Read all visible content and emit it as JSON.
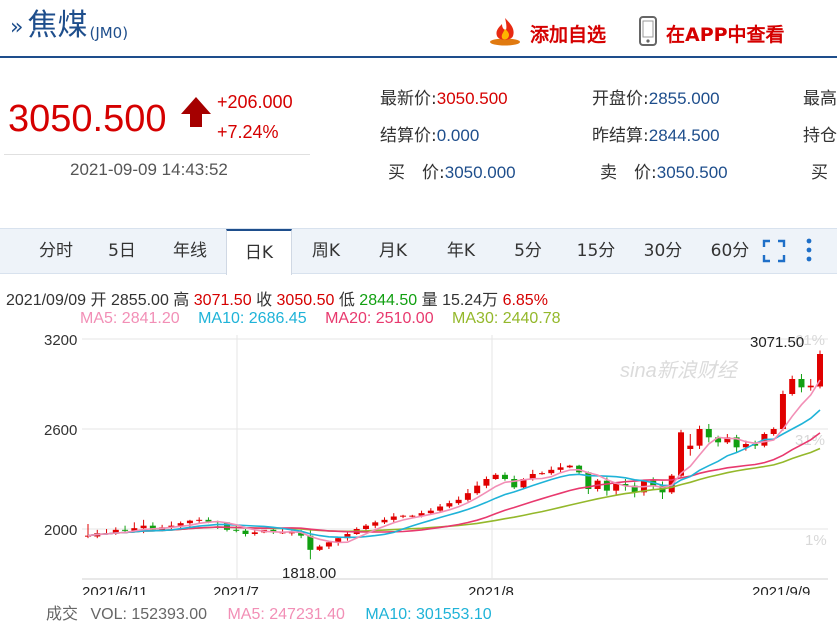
{
  "header": {
    "name": "焦煤",
    "code": "(JM0)",
    "add_watch": "添加自选",
    "view_app": "在APP中查看"
  },
  "quote": {
    "price": "3050.500",
    "change": "+206.000",
    "change_pct": "+7.24%",
    "timestamp": "2021-09-09 14:43:52",
    "fields": {
      "latest_label": "最新价:",
      "latest": "3050.500",
      "open_label": "开盘价:",
      "open": "2855.000",
      "high_label": "最高",
      "settle_label": "结算价:",
      "settle": "0.000",
      "prev_settle_label": "昨结算:",
      "prev_settle": "2844.500",
      "hold_label": "持仓",
      "buy_label": "买　价:",
      "buy": "3050.000",
      "sell_label": "卖　价:",
      "sell": "3050.500",
      "buy_vol_label": "买"
    }
  },
  "tabs": [
    "分时",
    "5日",
    "年线",
    "日K",
    "周K",
    "月K",
    "年K",
    "5分",
    "15分",
    "30分",
    "60分"
  ],
  "active_tab": "日K",
  "bar_info": {
    "date": "2021/09/09",
    "open_label": "开",
    "open": "2855.00",
    "high_label": "高",
    "high": "3071.50",
    "close_label": "收",
    "close": "3050.50",
    "low_label": "低",
    "low": "2844.50",
    "vol_label": "量",
    "vol": "15.24万",
    "pct": "6.85%"
  },
  "ma": {
    "ma5": "MA5: 2841.20",
    "ma10": "MA10: 2686.45",
    "ma20": "MA20: 2510.00",
    "ma30": "MA30: 2440.78",
    "colors": {
      "ma5": "#f28fb6",
      "ma10": "#1fb3d8",
      "ma20": "#e8396e",
      "ma30": "#94b82b"
    }
  },
  "volume_row": {
    "label": "成交",
    "vol": "VOL: 152393.00",
    "ma5": "MA5: 247231.40",
    "ma10": "MA10: 301553.10"
  },
  "chart_data": {
    "type": "candlestick",
    "y_ticks": [
      "3200",
      "2600",
      "2000"
    ],
    "pct_ticks": [
      "61%",
      "31%",
      "1%"
    ],
    "x_labels": [
      "2021/6/11",
      "2021/7",
      "2021/8",
      "2021/9/9"
    ],
    "annotations": {
      "high": "3071.50",
      "low": "1818.00"
    },
    "watermark": "sina新浪财经",
    "ylim": [
      1800,
      3200
    ],
    "colors": {
      "up": "#e00000",
      "down": "#12a012"
    },
    "candles": [
      [
        1955,
        1960,
        2030,
        1945
      ],
      [
        1955,
        1975,
        1995,
        1945
      ],
      [
        1975,
        1975,
        2000,
        1965
      ],
      [
        1975,
        1995,
        2010,
        1965
      ],
      [
        1995,
        1990,
        2020,
        1980
      ],
      [
        1990,
        2005,
        2040,
        1985
      ],
      [
        2005,
        2020,
        2055,
        1975
      ],
      [
        2020,
        1995,
        2040,
        1985
      ],
      [
        1995,
        2010,
        2025,
        1985
      ],
      [
        2010,
        2020,
        2045,
        2000
      ],
      [
        2020,
        2035,
        2045,
        2005
      ],
      [
        2035,
        2050,
        2055,
        2010
      ],
      [
        2050,
        2055,
        2070,
        2035
      ],
      [
        2055,
        2045,
        2070,
        2035
      ],
      [
        2045,
        2040,
        2050,
        2000
      ],
      [
        2040,
        1995,
        2015,
        1985
      ],
      [
        1995,
        1990,
        2030,
        1980
      ],
      [
        1990,
        1970,
        2000,
        1955
      ],
      [
        1970,
        1980,
        1995,
        1960
      ],
      [
        1980,
        1995,
        1990,
        1975
      ],
      [
        1995,
        1980,
        2005,
        1970
      ],
      [
        1980,
        1980,
        2000,
        1970
      ],
      [
        1980,
        1980,
        1990,
        1960
      ],
      [
        1980,
        1960,
        1995,
        1945
      ],
      [
        1960,
        1875,
        1995,
        1818
      ],
      [
        1875,
        1895,
        1905,
        1868
      ],
      [
        1895,
        1920,
        1925,
        1880
      ],
      [
        1920,
        1945,
        1955,
        1900
      ],
      [
        1945,
        1970,
        1985,
        1930
      ],
      [
        1970,
        2000,
        2010,
        1965
      ],
      [
        2000,
        2020,
        2030,
        1990
      ],
      [
        2020,
        2040,
        2050,
        2005
      ],
      [
        2040,
        2055,
        2070,
        2030
      ],
      [
        2055,
        2075,
        2095,
        2040
      ],
      [
        2075,
        2080,
        2085,
        2065
      ],
      [
        2080,
        2080,
        2085,
        2070
      ],
      [
        2080,
        2095,
        2110,
        2070
      ],
      [
        2095,
        2110,
        2125,
        2085
      ],
      [
        2110,
        2135,
        2150,
        2100
      ],
      [
        2135,
        2155,
        2170,
        2125
      ],
      [
        2155,
        2175,
        2195,
        2145
      ],
      [
        2175,
        2215,
        2240,
        2165
      ],
      [
        2215,
        2260,
        2285,
        2205
      ],
      [
        2260,
        2300,
        2315,
        2245
      ],
      [
        2300,
        2325,
        2335,
        2295
      ],
      [
        2325,
        2300,
        2340,
        2290
      ],
      [
        2300,
        2250,
        2320,
        2240
      ],
      [
        2250,
        2300,
        2305,
        2240
      ],
      [
        2300,
        2330,
        2355,
        2290
      ],
      [
        2330,
        2335,
        2345,
        2325
      ],
      [
        2335,
        2355,
        2375,
        2325
      ],
      [
        2355,
        2370,
        2395,
        2340
      ],
      [
        2370,
        2380,
        2385,
        2365
      ],
      [
        2380,
        2340,
        2385,
        2330
      ],
      [
        2340,
        2240,
        2345,
        2210
      ],
      [
        2240,
        2290,
        2300,
        2225
      ],
      [
        2290,
        2230,
        2310,
        2200
      ],
      [
        2230,
        2270,
        2280,
        2200
      ],
      [
        2270,
        2260,
        2300,
        2230
      ],
      [
        2260,
        2220,
        2280,
        2190
      ],
      [
        2220,
        2290,
        2295,
        2200
      ],
      [
        2290,
        2260,
        2310,
        2240
      ],
      [
        2260,
        2220,
        2285,
        2180
      ],
      [
        2220,
        2320,
        2330,
        2210
      ],
      [
        2320,
        2580,
        2595,
        2310
      ],
      [
        2480,
        2500,
        2570,
        2440
      ],
      [
        2500,
        2600,
        2620,
        2480
      ],
      [
        2600,
        2550,
        2630,
        2520
      ],
      [
        2550,
        2520,
        2560,
        2495
      ],
      [
        2520,
        2550,
        2570,
        2510
      ],
      [
        2550,
        2490,
        2565,
        2460
      ],
      [
        2490,
        2510,
        2530,
        2470
      ],
      [
        2510,
        2500,
        2530,
        2480
      ],
      [
        2500,
        2570,
        2580,
        2490
      ],
      [
        2570,
        2600,
        2610,
        2560
      ],
      [
        2600,
        2810,
        2830,
        2590
      ],
      [
        2810,
        2900,
        2920,
        2800
      ],
      [
        2900,
        2850,
        2930,
        2820
      ],
      [
        2850,
        2860,
        2900,
        2830
      ],
      [
        2855,
        3050,
        3071,
        2844
      ]
    ]
  }
}
